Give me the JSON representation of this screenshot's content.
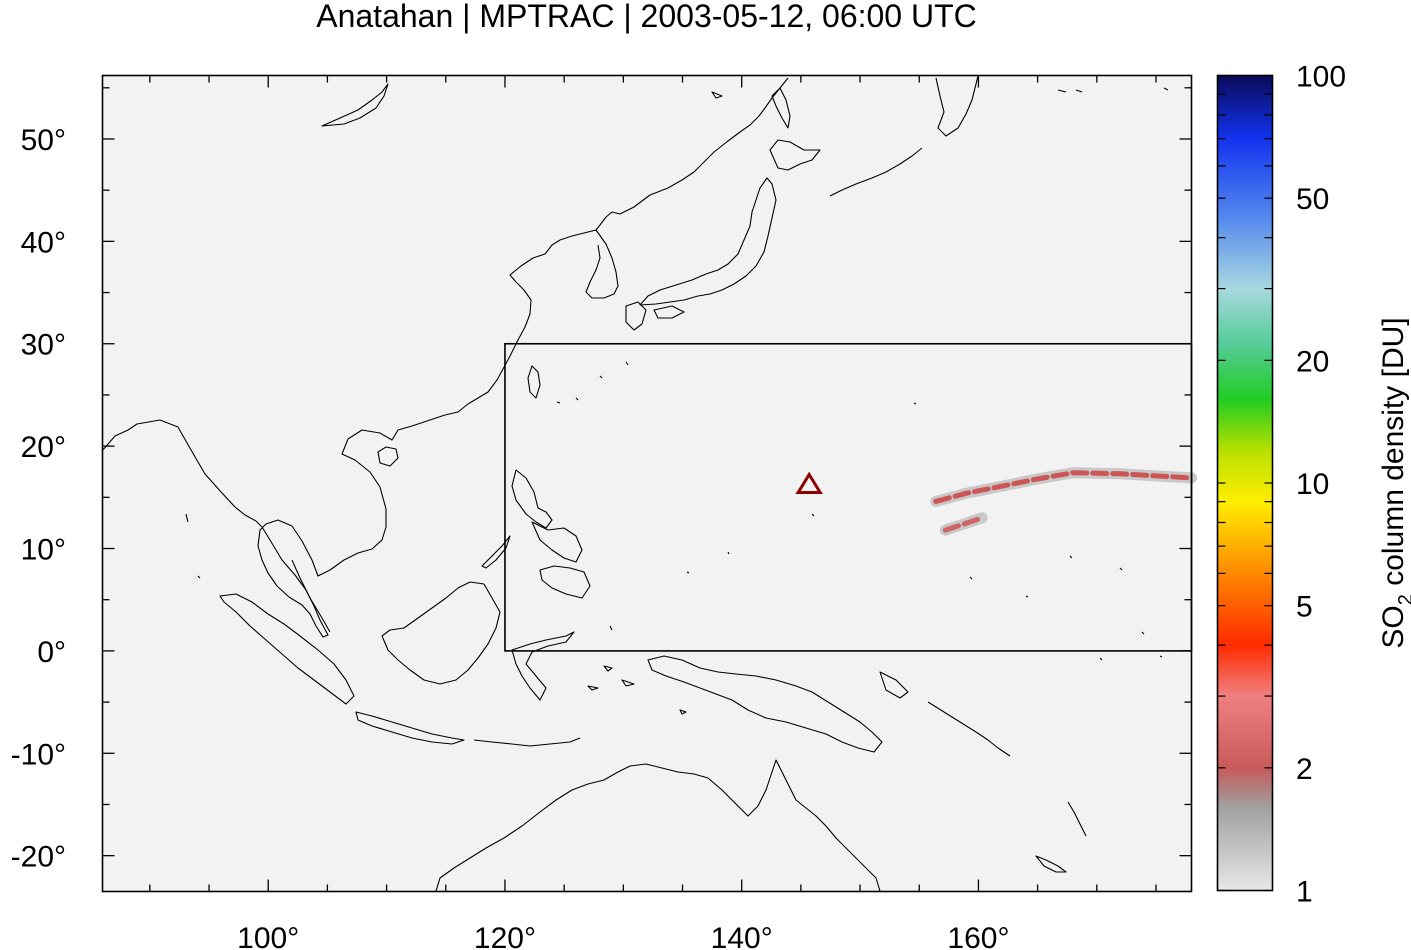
{
  "title": "Anatahan | MPTRAC | 2003-05-12, 06:00 UTC",
  "map": {
    "lon_range": [
      86,
      178
    ],
    "lat_range": [
      -23.5,
      56.2
    ],
    "background": "#f2f2f2",
    "coast_color": "#000000",
    "x_ticks": [
      "100°",
      "120°",
      "140°",
      "160°"
    ],
    "y_ticks": [
      "50°",
      "40°",
      "30°",
      "20°",
      "10°",
      "0°",
      "-10°",
      "-20°"
    ],
    "domain_box": {
      "lon_min": 120,
      "lon_max": 178,
      "lat_min": 0,
      "lat_max": 30
    },
    "volcano": {
      "name": "Anatahan",
      "lon": 145.7,
      "lat": 16.35,
      "marker": "triangle-icon",
      "color": "#8b0000"
    },
    "plumes": [
      {
        "points": [
          [
            156.4,
            14.6
          ],
          [
            159,
            15.4
          ],
          [
            162,
            16.1
          ],
          [
            165,
            16.8
          ],
          [
            168,
            17.4
          ],
          [
            172,
            17.3
          ],
          [
            178,
            16.9
          ]
        ],
        "color": "#cc5555"
      },
      {
        "points": [
          [
            157.2,
            11.8
          ],
          [
            158.8,
            12.4
          ],
          [
            160.3,
            13.0
          ]
        ],
        "color": "#cc6666"
      }
    ]
  },
  "colorbar": {
    "label_main": "SO",
    "label_sub": "2",
    "label_rest": " column density [DU]",
    "scale": "log",
    "range": [
      1,
      100
    ],
    "ticks": [
      "100",
      "50",
      "20",
      "10",
      "5",
      "2",
      "1"
    ],
    "stops": [
      [
        1,
        "#e8e8e8"
      ],
      [
        1.6,
        "#a0a0a0"
      ],
      [
        2,
        "#c85a5a"
      ],
      [
        3,
        "#f08080"
      ],
      [
        4,
        "#ff2a00"
      ],
      [
        6,
        "#ff8800"
      ],
      [
        9,
        "#ffee00"
      ],
      [
        12,
        "#b8e000"
      ],
      [
        16,
        "#22cc22"
      ],
      [
        22,
        "#55cc99"
      ],
      [
        30,
        "#a8d8e0"
      ],
      [
        45,
        "#5588ee"
      ],
      [
        70,
        "#1133ee"
      ],
      [
        100,
        "#0a0a5a"
      ]
    ]
  }
}
